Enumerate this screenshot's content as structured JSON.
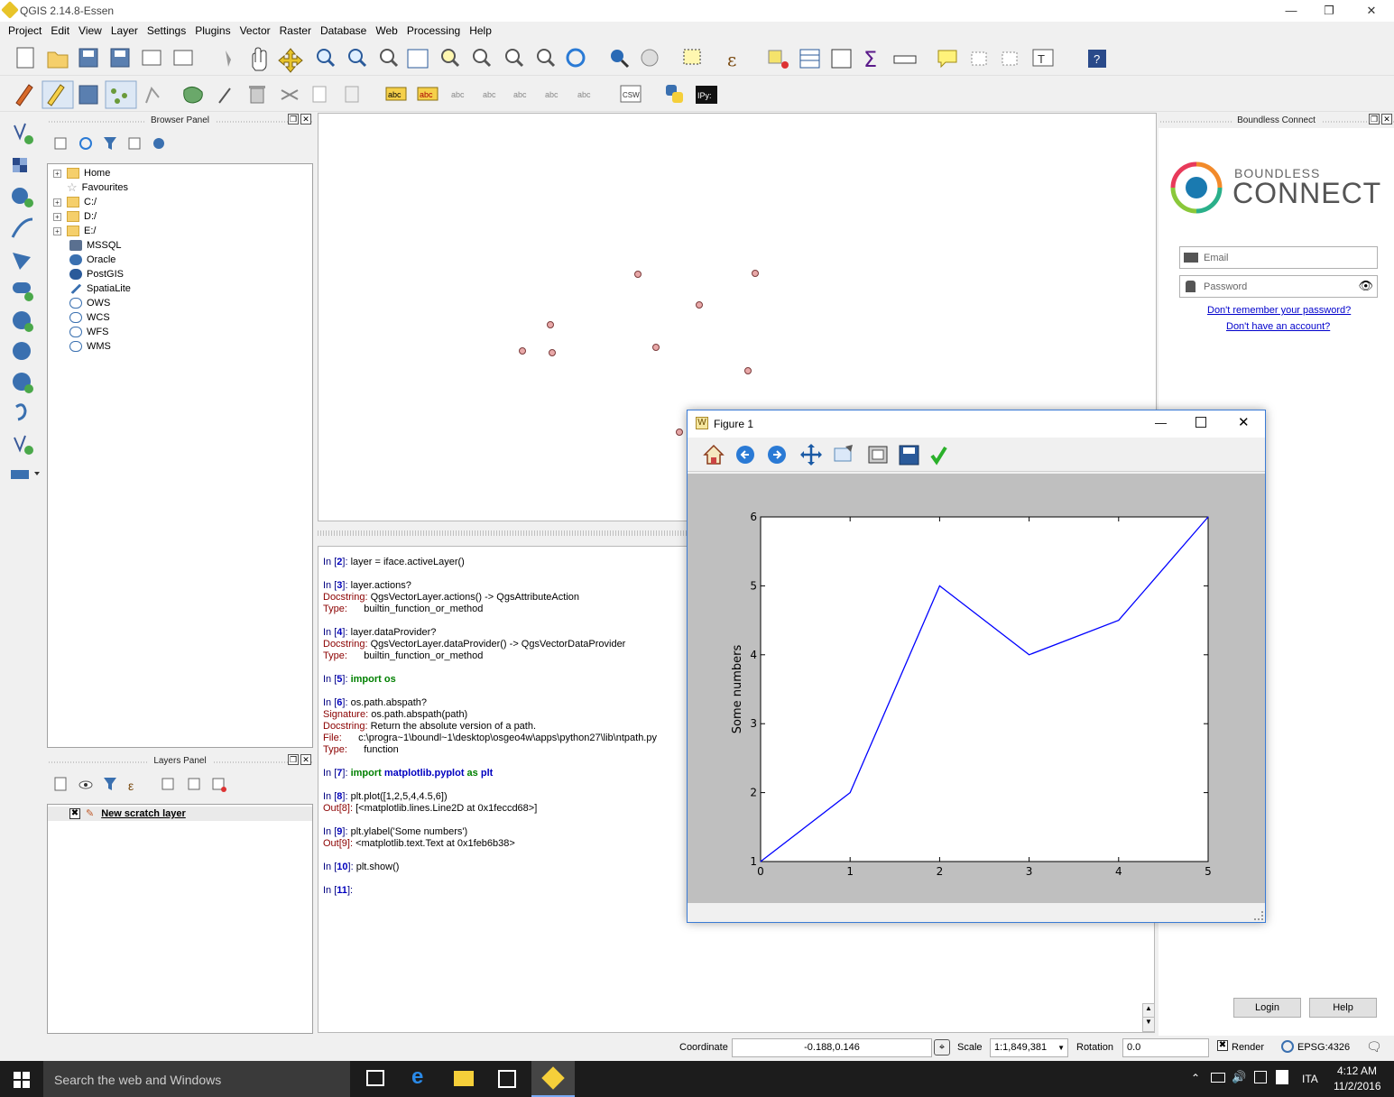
{
  "app": {
    "title": "QGIS 2.14.8-Essen"
  },
  "menu": [
    "Project",
    "Edit",
    "View",
    "Layer",
    "Settings",
    "Plugins",
    "Vector",
    "Raster",
    "Database",
    "Web",
    "Processing",
    "Help"
  ],
  "browser": {
    "title": "Browser Panel",
    "items": [
      {
        "label": "Home",
        "icon": "folder-icon",
        "expand": true
      },
      {
        "label": "Favourites",
        "icon": "star-icon",
        "expand": false
      },
      {
        "label": "C:/",
        "icon": "folder-icon",
        "expand": true
      },
      {
        "label": "D:/",
        "icon": "folder-icon",
        "expand": true
      },
      {
        "label": "E:/",
        "icon": "folder-icon",
        "expand": true
      },
      {
        "label": "MSSQL",
        "icon": "mssql-icon",
        "expand": false
      },
      {
        "label": "Oracle",
        "icon": "oracle-icon",
        "expand": false
      },
      {
        "label": "PostGIS",
        "icon": "postgis-icon",
        "expand": false
      },
      {
        "label": "SpatiaLite",
        "icon": "spatialite-icon",
        "expand": false
      },
      {
        "label": "OWS",
        "icon": "globe-icon",
        "expand": false
      },
      {
        "label": "WCS",
        "icon": "globe-icon",
        "expand": false
      },
      {
        "label": "WFS",
        "icon": "globe-icon",
        "expand": false
      },
      {
        "label": "WMS",
        "icon": "globe-icon",
        "expand": false
      }
    ]
  },
  "layers": {
    "title": "Layers Panel",
    "items": [
      {
        "label": "New scratch layer",
        "checked": true
      }
    ]
  },
  "console": [
    [
      {
        "t": "In [",
        "c": "blue"
      },
      {
        "t": "2",
        "c": "bl2"
      },
      {
        "t": "]: ",
        "c": "blue"
      },
      {
        "t": "layer = iface.activeLayer()",
        "c": ""
      }
    ],
    [],
    [
      {
        "t": "In [",
        "c": "blue"
      },
      {
        "t": "3",
        "c": "bl2"
      },
      {
        "t": "]: ",
        "c": "blue"
      },
      {
        "t": "layer.actions?",
        "c": ""
      }
    ],
    [
      {
        "t": "Docstring: ",
        "c": "dred"
      },
      {
        "t": "QgsVectorLayer.actions() -> QgsAttributeAction",
        "c": ""
      }
    ],
    [
      {
        "t": "Type:      ",
        "c": "dred"
      },
      {
        "t": "builtin_function_or_method",
        "c": ""
      }
    ],
    [],
    [
      {
        "t": "In [",
        "c": "blue"
      },
      {
        "t": "4",
        "c": "bl2"
      },
      {
        "t": "]: ",
        "c": "blue"
      },
      {
        "t": "layer.dataProvider?",
        "c": ""
      }
    ],
    [
      {
        "t": "Docstring: ",
        "c": "dred"
      },
      {
        "t": "QgsVectorLayer.dataProvider() -> QgsVectorDataProvider",
        "c": ""
      }
    ],
    [
      {
        "t": "Type:      ",
        "c": "dred"
      },
      {
        "t": "builtin_function_or_method",
        "c": ""
      }
    ],
    [],
    [
      {
        "t": "In [",
        "c": "blue"
      },
      {
        "t": "5",
        "c": "bl2"
      },
      {
        "t": "]: ",
        "c": "blue"
      },
      {
        "t": "import os",
        "c": "grn"
      }
    ],
    [],
    [
      {
        "t": "In [",
        "c": "blue"
      },
      {
        "t": "6",
        "c": "bl2"
      },
      {
        "t": "]: ",
        "c": "blue"
      },
      {
        "t": "os.path.abspath?",
        "c": ""
      }
    ],
    [
      {
        "t": "Signature: ",
        "c": "dred"
      },
      {
        "t": "os.path.abspath(path)",
        "c": ""
      }
    ],
    [
      {
        "t": "Docstring: ",
        "c": "dred"
      },
      {
        "t": "Return the absolute version of a path.",
        "c": ""
      }
    ],
    [
      {
        "t": "File:      ",
        "c": "dred"
      },
      {
        "t": "c:\\progra~1\\boundl~1\\desktop\\osgeo4w\\apps\\python27\\lib\\ntpath.py",
        "c": ""
      }
    ],
    [
      {
        "t": "Type:      ",
        "c": "dred"
      },
      {
        "t": "function",
        "c": ""
      }
    ],
    [],
    [
      {
        "t": "In [",
        "c": "blue"
      },
      {
        "t": "7",
        "c": "bl2"
      },
      {
        "t": "]: ",
        "c": "blue"
      },
      {
        "t": "import ",
        "c": "grn"
      },
      {
        "t": "matplotlib.pyplot",
        "c": "bl2"
      },
      {
        "t": " as ",
        "c": "grn"
      },
      {
        "t": "plt",
        "c": "bl2"
      }
    ],
    [],
    [
      {
        "t": "In [",
        "c": "blue"
      },
      {
        "t": "8",
        "c": "bl2"
      },
      {
        "t": "]: ",
        "c": "blue"
      },
      {
        "t": "plt.plot([1,2,5,4,4.5,6])",
        "c": ""
      }
    ],
    [
      {
        "t": "Out[",
        "c": "dred"
      },
      {
        "t": "8",
        "c": "dred"
      },
      {
        "t": "]: ",
        "c": "dred"
      },
      {
        "t": "[<matplotlib.lines.Line2D at 0x1feccd68>]",
        "c": ""
      }
    ],
    [],
    [
      {
        "t": "In [",
        "c": "blue"
      },
      {
        "t": "9",
        "c": "bl2"
      },
      {
        "t": "]: ",
        "c": "blue"
      },
      {
        "t": "plt.ylabel('Some numbers')",
        "c": ""
      }
    ],
    [
      {
        "t": "Out[",
        "c": "dred"
      },
      {
        "t": "9",
        "c": "dred"
      },
      {
        "t": "]: ",
        "c": "dred"
      },
      {
        "t": "<matplotlib.text.Text at 0x1feb6b38>",
        "c": ""
      }
    ],
    [],
    [
      {
        "t": "In [",
        "c": "blue"
      },
      {
        "t": "10",
        "c": "bl2"
      },
      {
        "t": "]: ",
        "c": "blue"
      },
      {
        "t": "plt.show()",
        "c": ""
      }
    ],
    [],
    [
      {
        "t": "In [",
        "c": "blue"
      },
      {
        "t": "11",
        "c": "bl2"
      },
      {
        "t": "]:",
        "c": "blue"
      }
    ]
  ],
  "connect": {
    "title": "Boundless Connect",
    "brand_top": "BOUNDLESS",
    "brand_bottom": "CONNECT",
    "email_placeholder": "Email",
    "password_placeholder": "Password",
    "forgot": "Don't remember your password?",
    "noaccount": "Don't have an account?",
    "login": "Login",
    "help": "Help"
  },
  "status": {
    "coord_label": "Coordinate",
    "coord_value": "-0.188,0.146",
    "scale_label": "Scale",
    "scale_value": "1:1,849,381",
    "rotation_label": "Rotation",
    "rotation_value": "0.0",
    "render_label": "Render",
    "crs": "EPSG:4326"
  },
  "taskbar": {
    "search": "Search the web and Windows",
    "lang": "ITA",
    "time": "4:12 AM",
    "date": "11/2/2016"
  },
  "figure": {
    "title": "Figure 1"
  },
  "map_points": [
    [
      0.381,
      0.392
    ],
    [
      0.52,
      0.39
    ],
    [
      0.454,
      0.467
    ],
    [
      0.243,
      0.58
    ],
    [
      0.276,
      0.517
    ],
    [
      0.279,
      0.585
    ],
    [
      0.402,
      0.571
    ],
    [
      0.512,
      0.63
    ],
    [
      0.43,
      0.78
    ]
  ],
  "chart_data": {
    "type": "line",
    "x": [
      0,
      1,
      2,
      3,
      4,
      5
    ],
    "series": [
      {
        "values": [
          1,
          2,
          5,
          4,
          4.5,
          6
        ]
      }
    ],
    "ylabel": "Some numbers",
    "xlabel": "",
    "title": "",
    "xlim": [
      0,
      5
    ],
    "ylim": [
      1,
      6
    ],
    "xticks": [
      "0",
      "1",
      "2",
      "3",
      "4",
      "5"
    ],
    "yticks": [
      "1",
      "2",
      "3",
      "4",
      "5",
      "6"
    ],
    "line_color": "#0000ff"
  }
}
